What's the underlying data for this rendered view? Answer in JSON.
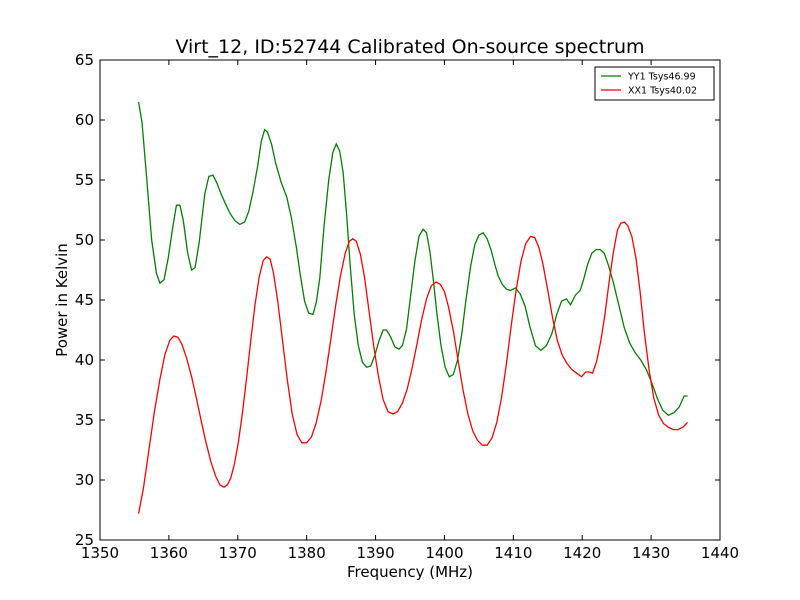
{
  "chart_data": {
    "type": "line",
    "title": "Virt_12, ID:52744 Calibrated On-source spectrum",
    "xlabel": "Frequency (MHz)",
    "ylabel": "Power in Kelvin",
    "xlim": [
      1350,
      1440
    ],
    "ylim": [
      25,
      65
    ],
    "xticks": [
      1350,
      1360,
      1370,
      1380,
      1390,
      1400,
      1410,
      1420,
      1430,
      1440
    ],
    "yticks": [
      25,
      30,
      35,
      40,
      45,
      50,
      55,
      60,
      65
    ],
    "grid": false,
    "legend_position": "top-right",
    "series": [
      {
        "name": "YY1 Tsys46.99",
        "color": "#008000",
        "x": [
          1355.6,
          1356.1,
          1356.8,
          1357.5,
          1358.2,
          1358.7,
          1359.3,
          1359.9,
          1360.6,
          1361.1,
          1361.6,
          1362.1,
          1362.7,
          1363.3,
          1363.8,
          1364.4,
          1365.2,
          1365.8,
          1366.4,
          1367.0,
          1367.6,
          1368.3,
          1368.9,
          1369.6,
          1370.3,
          1371.0,
          1371.6,
          1372.2,
          1372.9,
          1373.4,
          1373.9,
          1374.3,
          1374.9,
          1375.5,
          1376.3,
          1377.1,
          1377.8,
          1378.5,
          1379.1,
          1379.7,
          1380.3,
          1380.9,
          1381.4,
          1381.9,
          1382.5,
          1383.2,
          1383.8,
          1384.3,
          1384.8,
          1385.3,
          1385.8,
          1386.3,
          1386.9,
          1387.5,
          1388.1,
          1388.7,
          1389.3,
          1389.9,
          1390.5,
          1391.1,
          1391.6,
          1392.2,
          1392.8,
          1393.4,
          1393.9,
          1394.5,
          1395.1,
          1395.7,
          1396.3,
          1396.9,
          1397.4,
          1397.9,
          1398.4,
          1398.9,
          1399.5,
          1400.1,
          1400.7,
          1401.3,
          1401.9,
          1402.5,
          1403.1,
          1403.8,
          1404.4,
          1405.0,
          1405.6,
          1406.2,
          1406.8,
          1407.3,
          1407.8,
          1408.4,
          1409.0,
          1409.6,
          1410.3,
          1411.0,
          1411.7,
          1412.4,
          1413.2,
          1414.0,
          1414.8,
          1415.6,
          1416.3,
          1417.0,
          1417.7,
          1418.3,
          1419.0,
          1419.7,
          1420.2,
          1420.8,
          1421.4,
          1422.0,
          1422.6,
          1423.2,
          1423.8,
          1424.5,
          1425.3,
          1426.1,
          1426.9,
          1427.7,
          1428.5,
          1429.3,
          1430.1,
          1430.9,
          1431.7,
          1432.5,
          1433.3,
          1434.1,
          1434.8,
          1435.3
        ],
        "y": [
          61.5,
          59.8,
          55.0,
          50.0,
          47.2,
          46.4,
          46.7,
          48.5,
          51.2,
          52.9,
          52.9,
          51.6,
          49.0,
          47.5,
          47.7,
          49.8,
          53.8,
          55.3,
          55.4,
          54.7,
          53.8,
          52.9,
          52.2,
          51.6,
          51.3,
          51.5,
          52.4,
          54.0,
          56.2,
          58.2,
          59.2,
          59.0,
          58.0,
          56.4,
          54.8,
          53.6,
          51.8,
          49.4,
          47.0,
          44.9,
          43.9,
          43.8,
          44.8,
          46.8,
          51.0,
          55.0,
          57.3,
          58.0,
          57.4,
          55.6,
          52.1,
          48.0,
          43.8,
          41.2,
          39.8,
          39.4,
          39.5,
          40.4,
          41.6,
          42.5,
          42.5,
          41.9,
          41.1,
          40.9,
          41.2,
          42.6,
          45.4,
          48.2,
          50.3,
          50.9,
          50.6,
          49.0,
          46.6,
          43.9,
          41.2,
          39.4,
          38.6,
          38.8,
          40.0,
          42.1,
          44.9,
          47.8,
          49.6,
          50.4,
          50.6,
          50.1,
          49.1,
          48.0,
          47.0,
          46.3,
          45.9,
          45.8,
          46.0,
          45.5,
          44.5,
          42.8,
          41.2,
          40.8,
          41.2,
          42.2,
          43.8,
          44.9,
          45.1,
          44.6,
          45.4,
          45.8,
          46.7,
          48.0,
          48.9,
          49.2,
          49.2,
          48.9,
          47.9,
          46.5,
          44.6,
          42.7,
          41.4,
          40.6,
          40.0,
          39.2,
          38.1,
          36.8,
          35.8,
          35.4,
          35.6,
          36.1,
          37.0,
          37.0
        ]
      },
      {
        "name": "XX1 Tsys40.02",
        "color": "#ff0000",
        "x": [
          1355.6,
          1356.3,
          1357.1,
          1357.9,
          1358.7,
          1359.4,
          1360.1,
          1360.7,
          1361.3,
          1361.9,
          1362.6,
          1363.3,
          1364.0,
          1364.7,
          1365.4,
          1366.1,
          1366.8,
          1367.4,
          1368.0,
          1368.5,
          1369.0,
          1369.5,
          1370.1,
          1370.7,
          1371.3,
          1371.9,
          1372.5,
          1373.1,
          1373.7,
          1374.2,
          1374.7,
          1375.2,
          1375.8,
          1376.5,
          1377.2,
          1377.9,
          1378.6,
          1379.3,
          1380.0,
          1380.7,
          1381.4,
          1382.1,
          1382.8,
          1383.5,
          1384.2,
          1384.9,
          1385.6,
          1386.2,
          1386.7,
          1387.2,
          1387.8,
          1388.4,
          1389.0,
          1389.7,
          1390.4,
          1391.1,
          1391.8,
          1392.5,
          1393.2,
          1393.9,
          1394.6,
          1395.3,
          1396.0,
          1396.7,
          1397.4,
          1398.1,
          1398.8,
          1399.4,
          1400.0,
          1400.6,
          1401.3,
          1402.0,
          1402.7,
          1403.4,
          1404.1,
          1404.8,
          1405.5,
          1406.2,
          1406.9,
          1407.6,
          1408.3,
          1409.0,
          1409.7,
          1410.4,
          1411.1,
          1411.8,
          1412.5,
          1413.1,
          1413.7,
          1414.3,
          1415.0,
          1415.7,
          1416.4,
          1417.1,
          1417.8,
          1418.5,
          1419.2,
          1419.9,
          1420.5,
          1421.0,
          1421.5,
          1422.1,
          1422.7,
          1423.3,
          1423.9,
          1424.5,
          1425.1,
          1425.6,
          1426.1,
          1426.6,
          1427.2,
          1427.8,
          1428.4,
          1429.0,
          1429.7,
          1430.4,
          1431.1,
          1431.8,
          1432.5,
          1433.2,
          1433.9,
          1434.6,
          1435.3
        ],
        "y": [
          27.2,
          29.3,
          32.5,
          35.7,
          38.4,
          40.4,
          41.6,
          42.0,
          41.9,
          41.3,
          40.1,
          38.6,
          36.8,
          34.9,
          33.1,
          31.5,
          30.3,
          29.6,
          29.4,
          29.6,
          30.2,
          31.3,
          33.2,
          35.7,
          38.6,
          41.7,
          44.6,
          46.9,
          48.3,
          48.6,
          48.4,
          47.2,
          44.9,
          41.6,
          38.3,
          35.5,
          33.8,
          33.1,
          33.1,
          33.6,
          34.8,
          36.6,
          39.0,
          41.7,
          44.5,
          47.0,
          48.9,
          49.9,
          50.1,
          49.9,
          48.8,
          46.9,
          44.3,
          41.3,
          38.7,
          36.7,
          35.7,
          35.5,
          35.7,
          36.4,
          37.6,
          39.3,
          41.3,
          43.4,
          45.1,
          46.2,
          46.5,
          46.3,
          45.7,
          44.4,
          42.4,
          39.9,
          37.5,
          35.5,
          34.1,
          33.3,
          32.9,
          32.9,
          33.5,
          34.8,
          36.9,
          39.7,
          42.9,
          45.8,
          48.2,
          49.7,
          50.3,
          50.2,
          49.4,
          48.0,
          45.8,
          43.5,
          41.6,
          40.4,
          39.7,
          39.2,
          38.9,
          38.6,
          39.0,
          39.0,
          38.9,
          39.9,
          41.6,
          43.8,
          46.5,
          48.9,
          50.8,
          51.4,
          51.5,
          51.2,
          50.3,
          48.5,
          45.7,
          42.4,
          39.2,
          36.8,
          35.4,
          34.7,
          34.4,
          34.2,
          34.2,
          34.4,
          34.8
        ]
      }
    ]
  }
}
